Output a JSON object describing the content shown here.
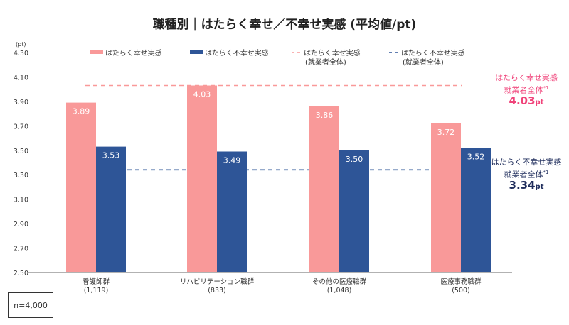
{
  "chart_data": {
    "type": "bar",
    "title": "職種別｜はたらく幸せ／不幸せ実感 (平均値/pt)",
    "ylabel": "(pt)",
    "ylim": [
      2.5,
      4.3
    ],
    "yticks": [
      "4.30",
      "4.10",
      "3.90",
      "3.70",
      "3.50",
      "3.30",
      "3.10",
      "2.90",
      "2.70",
      "2.50"
    ],
    "categories": [
      "看護師群",
      "リハビリテーション職群",
      "その他の医療職群",
      "医療事務職群"
    ],
    "category_counts": [
      "(1,119)",
      "(833)",
      "(1,048)",
      "(500)"
    ],
    "series": [
      {
        "name": "はたらく幸せ実感",
        "values": [
          3.89,
          4.03,
          3.86,
          3.72
        ],
        "color": "#f99999"
      },
      {
        "name": "はたらく不幸せ実感",
        "values": [
          3.53,
          3.49,
          3.5,
          3.52
        ],
        "color": "#2e5597"
      }
    ],
    "reference_lines": [
      {
        "name": "はたらく幸せ実感",
        "name2": "(就業者全体)",
        "value": 4.03,
        "color": "#f99999",
        "annotation": [
          "はたらく幸せ実感",
          "就業者全体",
          "*1",
          "4.03",
          "pt"
        ],
        "annotation_color": "#f0437a"
      },
      {
        "name": "はたらく不幸せ実感",
        "name2": "(就業者全体)",
        "value": 3.34,
        "color": "#2e5597",
        "annotation": [
          "はたらく不幸せ実感",
          "就業者全体",
          "*1",
          "3.34",
          "pt"
        ],
        "annotation_color": "#1f2d5c"
      }
    ],
    "legend": "top",
    "grid": false
  },
  "note": "n=4,000"
}
